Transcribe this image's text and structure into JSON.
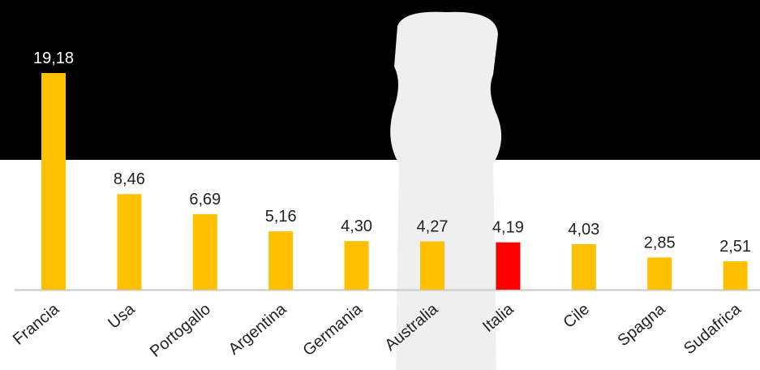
{
  "chart_data": {
    "type": "bar",
    "categories": [
      "Francia",
      "Usa",
      "Portogallo",
      "Argentina",
      "Germania",
      "Australia",
      "Italia",
      "Cile",
      "Spagna",
      "Sudafrica"
    ],
    "values": [
      19.18,
      8.46,
      6.69,
      5.16,
      4.3,
      4.27,
      4.19,
      4.03,
      2.85,
      2.51
    ],
    "value_labels": [
      "19,18",
      "8,46",
      "6,69",
      "5,16",
      "4,30",
      "4,27",
      "4,19",
      "4,03",
      "2,85",
      "2,51"
    ],
    "colors": [
      "#ffc000",
      "#ffc000",
      "#ffc000",
      "#ffc000",
      "#ffc000",
      "#ffc000",
      "#ff0000",
      "#ffc000",
      "#ffc000",
      "#ffc000"
    ]
  }
}
